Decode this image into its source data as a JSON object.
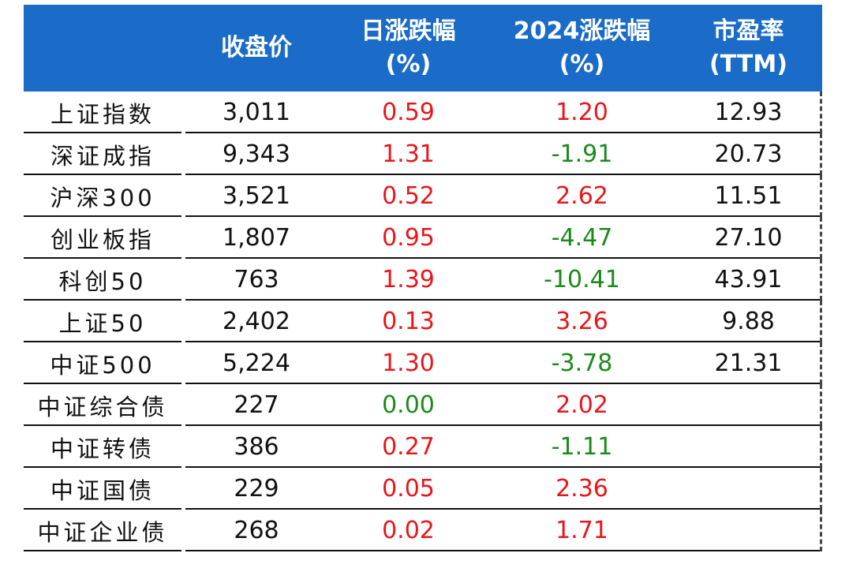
{
  "colors": {
    "header_bg": "#1a6cc8",
    "positive": "#e8161a",
    "negative": "#1a8a1a"
  },
  "header": {
    "close": "收盘价",
    "day_line1": "日涨跌幅",
    "day_line2": "(%)",
    "ytd_line1": "2024涨跌幅",
    "ytd_line2": "(%)",
    "pe_line1": "市盈率",
    "pe_line2": "(TTM)"
  },
  "rows": [
    {
      "name": "上证指数",
      "close": "3,011",
      "day": "0.59",
      "ytd": "1.20",
      "pe": "12.93"
    },
    {
      "name": "深证成指",
      "close": "9,343",
      "day": "1.31",
      "ytd": "-1.91",
      "pe": "20.73"
    },
    {
      "name": "沪深300",
      "close": "3,521",
      "day": "0.52",
      "ytd": "2.62",
      "pe": "11.51"
    },
    {
      "name": "创业板指",
      "close": "1,807",
      "day": "0.95",
      "ytd": "-4.47",
      "pe": "27.10"
    },
    {
      "name": "科创50",
      "close": "763",
      "day": "1.39",
      "ytd": "-10.41",
      "pe": "43.91"
    },
    {
      "name": "上证50",
      "close": "2,402",
      "day": "0.13",
      "ytd": "3.26",
      "pe": "9.88"
    },
    {
      "name": "中证500",
      "close": "5,224",
      "day": "1.30",
      "ytd": "-3.78",
      "pe": "21.31"
    },
    {
      "name": "中证综合债",
      "close": "227",
      "day": "0.00",
      "ytd": "2.02",
      "pe": ""
    },
    {
      "name": "中证转债",
      "close": "386",
      "day": "0.27",
      "ytd": "-1.11",
      "pe": ""
    },
    {
      "name": "中证国债",
      "close": "229",
      "day": "0.05",
      "ytd": "2.36",
      "pe": ""
    },
    {
      "name": "中证企业债",
      "close": "268",
      "day": "0.02",
      "ytd": "1.71",
      "pe": ""
    }
  ]
}
